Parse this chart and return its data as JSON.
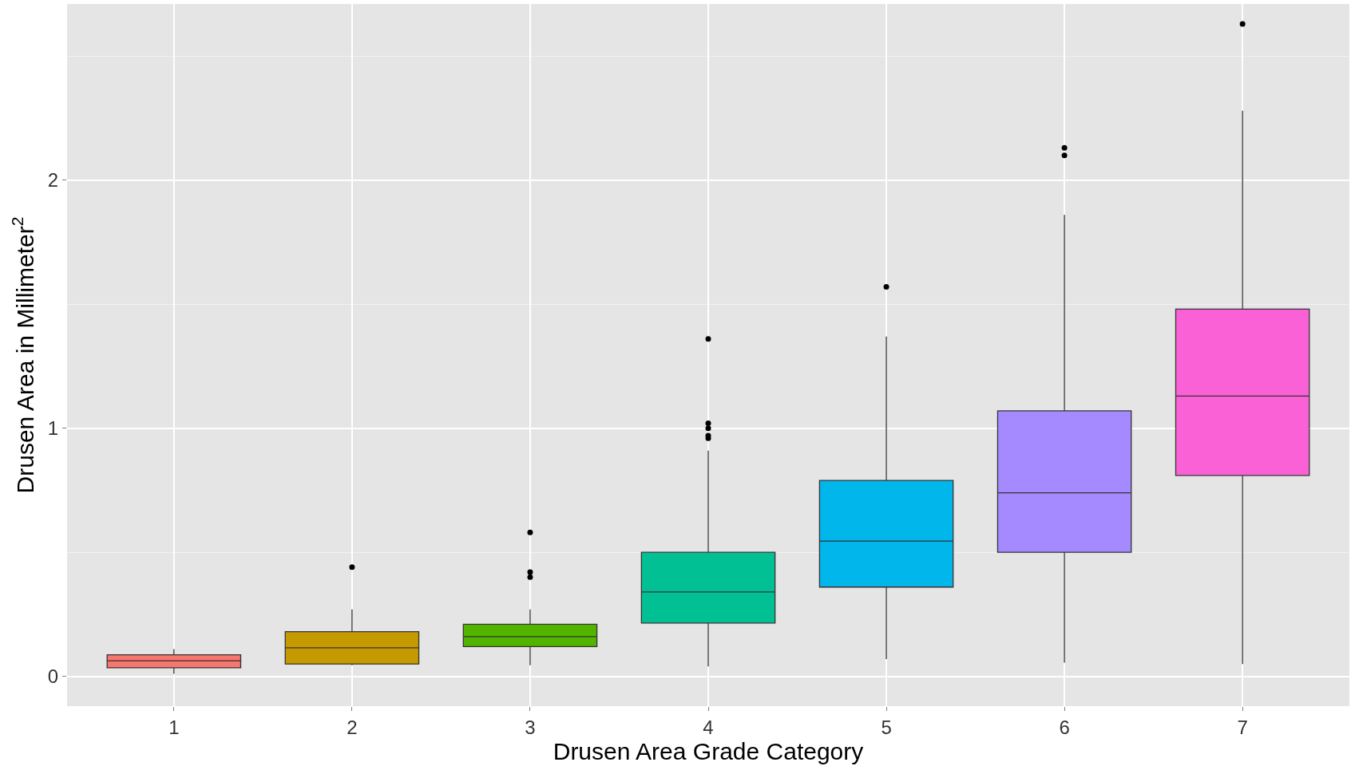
{
  "chart_data": {
    "type": "box",
    "xlabel": "Drusen Area Grade Category",
    "ylabel": "Drusen Area in Millimeter$^{2}$",
    "categories": [
      "1",
      "2",
      "3",
      "4",
      "5",
      "6",
      "7"
    ],
    "colors": [
      "#f8766d",
      "#c49a00",
      "#53b400",
      "#00c094",
      "#00b6eb",
      "#a58aff",
      "#fb61d7"
    ],
    "boxes": [
      {
        "low": 0.01,
        "q1": 0.035,
        "median": 0.063,
        "q3": 0.087,
        "high": 0.11
      },
      {
        "low": 0.045,
        "q1": 0.05,
        "median": 0.115,
        "q3": 0.18,
        "high": 0.27,
        "outliers": [
          0.44
        ]
      },
      {
        "low": 0.045,
        "q1": 0.12,
        "median": 0.16,
        "q3": 0.21,
        "high": 0.27,
        "outliers": [
          0.58,
          0.42,
          0.4
        ]
      },
      {
        "low": 0.04,
        "q1": 0.215,
        "median": 0.34,
        "q3": 0.5,
        "high": 0.91,
        "outliers": [
          1.36,
          1.02,
          1.0,
          0.97,
          0.96
        ]
      },
      {
        "low": 0.07,
        "q1": 0.36,
        "median": 0.545,
        "q3": 0.79,
        "high": 1.37,
        "outliers": [
          1.57
        ]
      },
      {
        "low": 0.055,
        "q1": 0.5,
        "median": 0.74,
        "q3": 1.07,
        "high": 1.86,
        "outliers": [
          2.13,
          2.1
        ]
      },
      {
        "low": 0.05,
        "q1": 0.81,
        "median": 1.13,
        "q3": 1.48,
        "high": 2.28,
        "outliers": [
          2.63
        ]
      }
    ],
    "ylim": [
      -0.12,
      2.71
    ],
    "yticks": [
      0,
      1,
      2
    ],
    "grid": true
  }
}
